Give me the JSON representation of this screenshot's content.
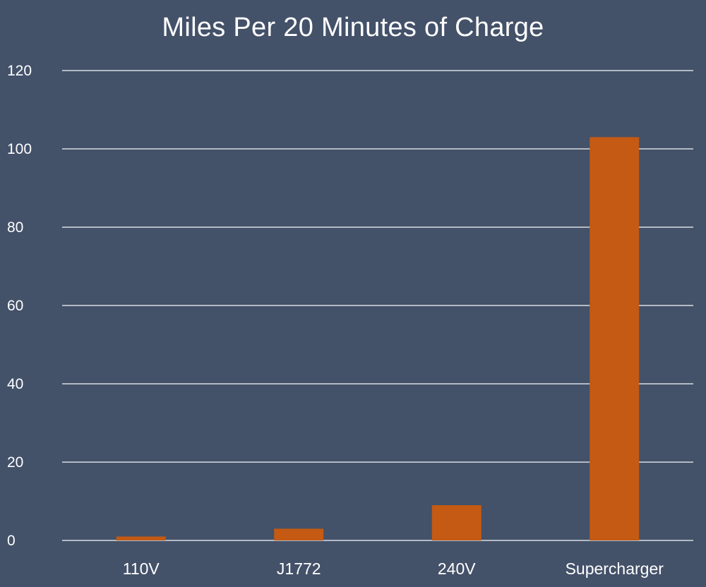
{
  "chart_data": {
    "type": "bar",
    "title": "Miles Per 20 Minutes of Charge",
    "categories": [
      "110V",
      "J1772",
      "240V",
      "Supercharger"
    ],
    "values": [
      1,
      3,
      9,
      103
    ],
    "ylim": [
      0,
      120
    ],
    "yticks": [
      0,
      20,
      40,
      60,
      80,
      100,
      120
    ],
    "grid": true,
    "xlabel": "",
    "ylabel": ""
  },
  "colors": {
    "background": "#435169",
    "bar": "#c45a13",
    "grid": "#d9dde3",
    "text": "#ffffff"
  }
}
